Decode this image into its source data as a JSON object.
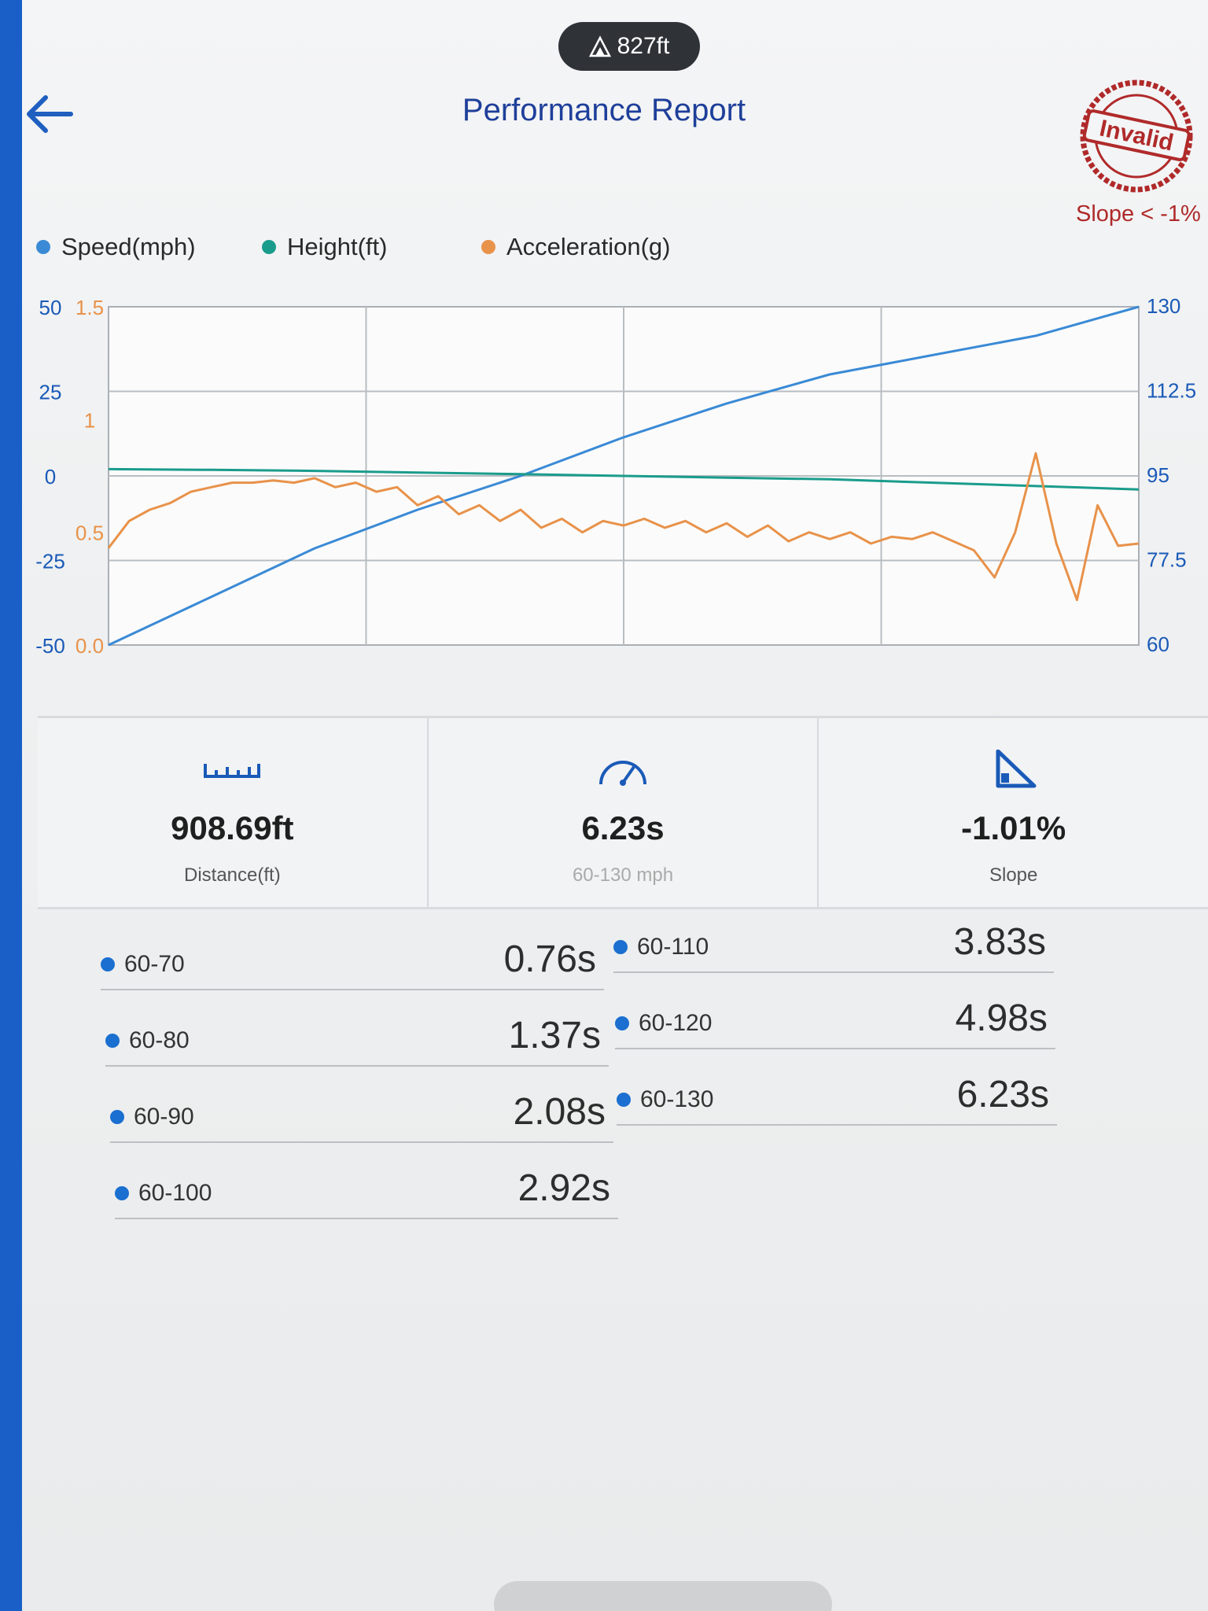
{
  "status": {
    "altitude": "827ft"
  },
  "header": {
    "title": "Performance Report",
    "back_icon": "arrow-left-icon"
  },
  "stamp": {
    "text": "Invalid",
    "note": "Slope < -1%",
    "color": "#b02a2a"
  },
  "legend": [
    {
      "label": "Speed(mph)",
      "color": "#3a8ad6"
    },
    {
      "label": "Height(ft)",
      "color": "#1a9c8c"
    },
    {
      "label": "Acceleration(g)",
      "color": "#e8924a"
    }
  ],
  "chart_data": {
    "type": "line",
    "axes": {
      "left_outer_ticks": [
        "50",
        "25",
        "0",
        "-25",
        "-50"
      ],
      "left_inner_ticks": [
        "1.5",
        "1",
        "0.5",
        "0.0"
      ],
      "right_ticks": [
        "130",
        "112.5",
        "95",
        "77.5",
        "60"
      ]
    },
    "series": [
      {
        "name": "Speed(mph)",
        "axis": "right",
        "range": [
          60,
          130
        ],
        "x": [
          0,
          10,
          20,
          30,
          40,
          50,
          60,
          70,
          80,
          90,
          100
        ],
        "values": [
          60,
          70,
          80,
          88,
          95,
          103,
          110,
          116,
          120,
          124,
          130
        ]
      },
      {
        "name": "Height(ft)",
        "axis": "left_outer",
        "range": [
          -50,
          50
        ],
        "x": [
          0,
          10,
          20,
          30,
          40,
          50,
          60,
          70,
          80,
          90,
          100
        ],
        "values": [
          2,
          1.8,
          1.5,
          1,
          0.5,
          0,
          -0.5,
          -1,
          -2,
          -3,
          -4
        ]
      },
      {
        "name": "Acceleration(g)",
        "axis": "left_inner",
        "range": [
          0,
          1.5
        ],
        "x": [
          0,
          2,
          4,
          6,
          8,
          10,
          12,
          14,
          16,
          18,
          20,
          22,
          24,
          26,
          28,
          30,
          32,
          34,
          36,
          38,
          40,
          42,
          44,
          46,
          48,
          50,
          52,
          54,
          56,
          58,
          60,
          62,
          64,
          66,
          68,
          70,
          72,
          74,
          76,
          78,
          80,
          82,
          84,
          86,
          88,
          90,
          92,
          94,
          96,
          98,
          100
        ],
        "values": [
          0.43,
          0.55,
          0.6,
          0.63,
          0.68,
          0.7,
          0.72,
          0.72,
          0.73,
          0.72,
          0.74,
          0.7,
          0.72,
          0.68,
          0.7,
          0.62,
          0.66,
          0.58,
          0.62,
          0.55,
          0.6,
          0.52,
          0.56,
          0.5,
          0.55,
          0.53,
          0.56,
          0.52,
          0.55,
          0.5,
          0.54,
          0.48,
          0.53,
          0.46,
          0.5,
          0.47,
          0.5,
          0.45,
          0.48,
          0.47,
          0.5,
          0.46,
          0.42,
          0.3,
          0.5,
          0.85,
          0.45,
          0.2,
          0.62,
          0.44,
          0.45
        ]
      }
    ]
  },
  "stats": [
    {
      "icon": "ruler-icon",
      "value": "908.69ft",
      "label": "Distance(ft)"
    },
    {
      "icon": "speedometer-icon",
      "value": "6.23s",
      "label": "60-130 mph"
    },
    {
      "icon": "slope-icon",
      "value": "-1.01%",
      "label": "Slope"
    }
  ],
  "splits": [
    {
      "name": "60-70",
      "value": "0.76s"
    },
    {
      "name": "60-80",
      "value": "1.37s"
    },
    {
      "name": "60-90",
      "value": "2.08s"
    },
    {
      "name": "60-100",
      "value": "2.92s"
    },
    {
      "name": "60-110",
      "value": "3.83s"
    },
    {
      "name": "60-120",
      "value": "4.98s"
    },
    {
      "name": "60-130",
      "value": "6.23s"
    }
  ]
}
